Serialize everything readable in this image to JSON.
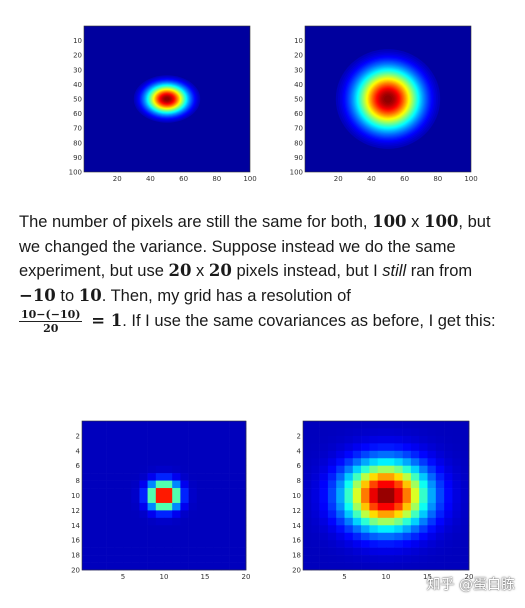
{
  "paragraph": {
    "p1": "The number of pixels are still the same for both, ",
    "m1": "100",
    "t_x1": " x ",
    "m2": "100",
    "p2": ", but we changed the variance. Suppose instead we do the same experiment, but use ",
    "m3": "20",
    "t_x2": " x ",
    "m4": "20",
    "p3": " pixels instead, but I ",
    "still": "still",
    "p4": " ran from ",
    "m5": "−10",
    "p5": " to ",
    "m6": "10",
    "p6": ". Then, my grid has a resolution of ",
    "frac_num": "10−(−10)",
    "frac_den": "20",
    "eq": " = 1",
    "p7": ". If I use the same covariances as before, I get this:"
  },
  "watermark": "知乎 @蛋白胨",
  "colors": {
    "background": "#00008f",
    "peak": "#800000"
  },
  "chart_data": [
    {
      "type": "heatmap",
      "colormap": "jet",
      "grid": [
        100,
        100
      ],
      "center": [
        50,
        50
      ],
      "spread": "narrow",
      "x_ticks": [
        "20",
        "40",
        "60",
        "80",
        "100"
      ],
      "y_ticks": [
        "10",
        "20",
        "30",
        "40",
        "50",
        "60",
        "70",
        "80",
        "90",
        "100"
      ]
    },
    {
      "type": "heatmap",
      "colormap": "jet",
      "grid": [
        100,
        100
      ],
      "center": [
        50,
        50
      ],
      "spread": "wide",
      "x_ticks": [
        "20",
        "40",
        "60",
        "80",
        "100"
      ],
      "y_ticks": [
        "10",
        "20",
        "30",
        "40",
        "50",
        "60",
        "70",
        "80",
        "90",
        "100"
      ]
    },
    {
      "type": "heatmap",
      "colormap": "jet",
      "grid": [
        20,
        20
      ],
      "center": [
        10,
        10
      ],
      "spread": "narrow",
      "x_ticks": [
        "5",
        "10",
        "15",
        "20"
      ],
      "y_ticks": [
        "2",
        "4",
        "6",
        "8",
        "10",
        "12",
        "14",
        "16",
        "18",
        "20"
      ]
    },
    {
      "type": "heatmap",
      "colormap": "jet",
      "grid": [
        20,
        20
      ],
      "center": [
        10,
        10
      ],
      "spread": "wide",
      "x_ticks": [
        "5",
        "10",
        "15",
        "20"
      ],
      "y_ticks": [
        "2",
        "4",
        "6",
        "8",
        "10",
        "12",
        "14",
        "16",
        "18",
        "20"
      ]
    }
  ]
}
